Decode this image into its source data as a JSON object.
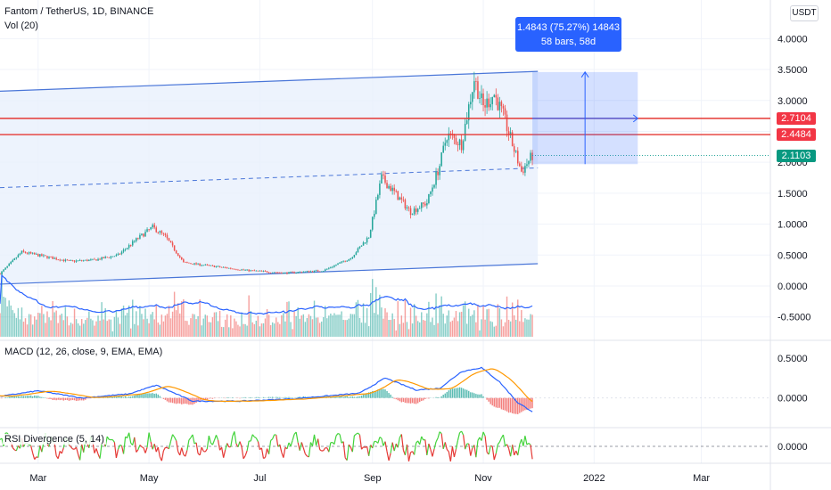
{
  "header": {
    "title": "Fantom / TetherUS, 1D, BINANCE",
    "vol_label": "Vol (20)",
    "currency_button": "USDT"
  },
  "colors": {
    "up": "#26a69a",
    "down": "#ef5350",
    "channel": "#4a76d8",
    "channel_fill": "#e8f0fd",
    "hline": "#e53935",
    "measure": "#2962ff",
    "macd": "#2962ff",
    "signal": "#ff9800",
    "rsi_up": "#43d33b",
    "rsi_down": "#e53935",
    "price_tag": "#26a69a"
  },
  "price_tags": [
    {
      "label": "2.7104",
      "value": 2.7104,
      "color": "#f23645"
    },
    {
      "label": "2.4484",
      "value": 2.4484,
      "color": "#f23645"
    },
    {
      "label": "2.1103",
      "value": 2.1103,
      "color": "#089981"
    }
  ],
  "measure": {
    "line1": "1.4843 (75.27%) 14843",
    "line2": "58 bars, 58d",
    "from_price": 1.97,
    "to_price": 3.46,
    "bars": 58
  },
  "panes": {
    "macd_title": "MACD (12, 26, close, 9, EMA, EMA)",
    "rsi_title": "RSI Divergence (5, 14)"
  },
  "chart_data": {
    "type": "candlestick",
    "title": "Fantom / TetherUS, 1D, BINANCE",
    "x_tick_labels": [
      "Mar",
      "May",
      "Jul",
      "Sep",
      "Nov",
      "2022",
      "Mar"
    ],
    "x_tick_dates": [
      "2021-03-01",
      "2021-05-01",
      "2021-07-01",
      "2021-09-01",
      "2021-11-01",
      "2022-01-01",
      "2022-03-01"
    ],
    "price_axis_labels": [
      "4.0000",
      "3.5000",
      "3.0000",
      "2.5000",
      "2.0000",
      "1.5000",
      "1.0000",
      "0.5000",
      "0.0000",
      "-0.5000"
    ],
    "price_axis_values": [
      4.0,
      3.5,
      3.0,
      2.5,
      2.0,
      1.5,
      1.0,
      0.5,
      0.0,
      -0.5
    ],
    "price_range": [
      -0.85,
      4.25
    ],
    "date_range": [
      "2021-02-08",
      "2022-04-08"
    ],
    "last_date": "2021-11-28",
    "price_path": [
      [
        "2021-02-08",
        0.2
      ],
      [
        "2021-02-20",
        0.55
      ],
      [
        "2021-03-04",
        0.48
      ],
      [
        "2021-03-18",
        0.4
      ],
      [
        "2021-04-01",
        0.42
      ],
      [
        "2021-04-14",
        0.5
      ],
      [
        "2021-04-24",
        0.75
      ],
      [
        "2021-05-03",
        0.95
      ],
      [
        "2021-05-10",
        0.8
      ],
      [
        "2021-05-20",
        0.38
      ],
      [
        "2021-06-05",
        0.32
      ],
      [
        "2021-06-25",
        0.25
      ],
      [
        "2021-07-15",
        0.21
      ],
      [
        "2021-08-05",
        0.25
      ],
      [
        "2021-08-20",
        0.45
      ],
      [
        "2021-08-30",
        0.8
      ],
      [
        "2021-09-06",
        1.75
      ],
      [
        "2021-09-12",
        1.55
      ],
      [
        "2021-09-22",
        1.2
      ],
      [
        "2021-10-01",
        1.35
      ],
      [
        "2021-10-08",
        1.95
      ],
      [
        "2021-10-12",
        2.45
      ],
      [
        "2021-10-20",
        2.3
      ],
      [
        "2021-10-27",
        3.35
      ],
      [
        "2021-11-01",
        2.9
      ],
      [
        "2021-11-07",
        3.1
      ],
      [
        "2021-11-12",
        2.75
      ],
      [
        "2021-11-18",
        2.2
      ],
      [
        "2021-11-22",
        1.85
      ],
      [
        "2021-11-28",
        2.11
      ]
    ],
    "channel": {
      "upper": [
        [
          "2021-02-08",
          3.15
        ],
        [
          "2021-12-01",
          3.47
        ]
      ],
      "lower": [
        [
          "2021-02-08",
          0.03
        ],
        [
          "2021-12-01",
          0.36
        ]
      ],
      "mid": [
        [
          "2021-02-08",
          1.59
        ],
        [
          "2021-12-01",
          1.91
        ]
      ]
    },
    "hlines": [
      2.7104,
      2.4484
    ],
    "last_price": 2.1103,
    "macd_axis_labels": [
      "0.5000",
      "0.0000"
    ],
    "macd_axis_values": [
      0.5,
      0.0
    ],
    "macd_range": [
      -0.35,
      0.7
    ],
    "macd_path": [
      [
        "2021-02-08",
        0.02
      ],
      [
        "2021-03-01",
        0.09
      ],
      [
        "2021-03-25",
        0.0
      ],
      [
        "2021-04-20",
        0.05
      ],
      [
        "2021-05-05",
        0.16
      ],
      [
        "2021-05-25",
        -0.04
      ],
      [
        "2021-06-20",
        -0.04
      ],
      [
        "2021-07-20",
        -0.01
      ],
      [
        "2021-08-25",
        0.06
      ],
      [
        "2021-09-08",
        0.25
      ],
      [
        "2021-09-25",
        0.1
      ],
      [
        "2021-10-08",
        0.12
      ],
      [
        "2021-10-20",
        0.33
      ],
      [
        "2021-10-31",
        0.38
      ],
      [
        "2021-11-10",
        0.2
      ],
      [
        "2021-11-20",
        -0.06
      ],
      [
        "2021-11-28",
        -0.17
      ]
    ],
    "rsi_axis_labels": [
      "0.0000"
    ],
    "rsi_axis_values": [
      0.0
    ],
    "rsi_range": [
      -1.1,
      1.1
    ]
  }
}
